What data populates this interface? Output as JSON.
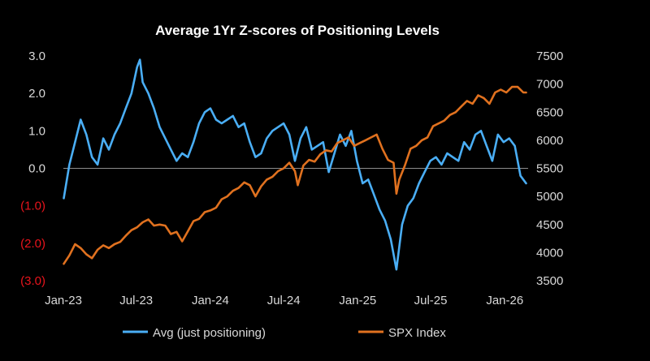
{
  "chart_data": {
    "type": "line",
    "title": "Average 1Yr Z-scores of Positioning Levels",
    "x_ticks": [
      "Jan-23",
      "Jul-23",
      "Jan-24",
      "Jul-24",
      "Jan-25",
      "Jul-25",
      "Jan-26"
    ],
    "x_range": [
      "2023-01-01",
      "2026-02-28"
    ],
    "y_left": {
      "ticks": [
        "3.0",
        "2.0",
        "1.0",
        "0.0",
        "(1.0)",
        "(2.0)",
        "(3.0)"
      ],
      "range": [
        -3,
        3
      ],
      "negative_color": "#e8141c"
    },
    "y_right": {
      "ticks": [
        "7500",
        "7000",
        "6500",
        "6000",
        "5500",
        "5000",
        "4500",
        "4000",
        "3500"
      ],
      "range": [
        3500,
        7500
      ]
    },
    "zero_line": true,
    "grid": false,
    "legend_position": "bottom",
    "series": [
      {
        "name": "Avg (just positioning)",
        "axis": "left",
        "color": "#4aaef5",
        "x": [
          "2023-01-02",
          "2023-01-16",
          "2023-01-30",
          "2023-02-13",
          "2023-02-27",
          "2023-03-13",
          "2023-03-27",
          "2023-04-10",
          "2023-04-24",
          "2023-05-08",
          "2023-05-22",
          "2023-06-05",
          "2023-06-19",
          "2023-07-03",
          "2023-07-10",
          "2023-07-17",
          "2023-07-31",
          "2023-08-14",
          "2023-08-28",
          "2023-09-11",
          "2023-09-25",
          "2023-10-09",
          "2023-10-23",
          "2023-11-06",
          "2023-11-20",
          "2023-12-04",
          "2023-12-18",
          "2024-01-01",
          "2024-01-15",
          "2024-01-29",
          "2024-02-12",
          "2024-02-26",
          "2024-03-11",
          "2024-03-25",
          "2024-04-08",
          "2024-04-22",
          "2024-05-06",
          "2024-05-20",
          "2024-06-03",
          "2024-06-17",
          "2024-07-01",
          "2024-07-15",
          "2024-07-29",
          "2024-08-12",
          "2024-08-26",
          "2024-09-09",
          "2024-09-23",
          "2024-10-07",
          "2024-10-21",
          "2024-11-04",
          "2024-11-18",
          "2024-12-02",
          "2024-12-16",
          "2024-12-30",
          "2025-01-13",
          "2025-01-27",
          "2025-02-10",
          "2025-02-24",
          "2025-03-10",
          "2025-03-24",
          "2025-04-07",
          "2025-04-14",
          "2025-04-21",
          "2025-05-05",
          "2025-05-19",
          "2025-06-02",
          "2025-06-16",
          "2025-06-30",
          "2025-07-14",
          "2025-07-28",
          "2025-08-11",
          "2025-08-25",
          "2025-09-08",
          "2025-09-22",
          "2025-10-06",
          "2025-10-20",
          "2025-11-03",
          "2025-11-17",
          "2025-12-01",
          "2025-12-15",
          "2025-12-29",
          "2026-01-12",
          "2026-01-26",
          "2026-02-09",
          "2026-02-23"
        ],
        "values": [
          -0.8,
          0.1,
          0.7,
          1.3,
          0.9,
          0.3,
          0.1,
          0.8,
          0.5,
          0.9,
          1.2,
          1.6,
          2.0,
          2.7,
          2.9,
          2.3,
          2.0,
          1.6,
          1.1,
          0.8,
          0.5,
          0.2,
          0.4,
          0.3,
          0.7,
          1.2,
          1.5,
          1.6,
          1.3,
          1.2,
          1.3,
          1.4,
          1.1,
          1.2,
          0.7,
          0.3,
          0.4,
          0.8,
          1.0,
          1.1,
          1.2,
          0.9,
          0.2,
          0.8,
          1.1,
          0.5,
          0.6,
          0.7,
          -0.1,
          0.4,
          0.9,
          0.6,
          1.0,
          0.2,
          -0.4,
          -0.3,
          -0.7,
          -1.1,
          -1.4,
          -1.9,
          -2.7,
          -2.1,
          -1.5,
          -1.0,
          -0.8,
          -0.4,
          -0.1,
          0.2,
          0.3,
          0.1,
          0.4,
          0.3,
          0.2,
          0.7,
          0.5,
          0.9,
          1.0,
          0.6,
          0.2,
          0.9,
          0.7,
          0.8,
          0.6,
          -0.2,
          -0.4
        ]
      },
      {
        "name": "SPX Index",
        "axis": "right",
        "color": "#e0711f",
        "x": [
          "2023-01-02",
          "2023-01-16",
          "2023-01-30",
          "2023-02-13",
          "2023-02-27",
          "2023-03-13",
          "2023-03-27",
          "2023-04-10",
          "2023-04-24",
          "2023-05-08",
          "2023-05-22",
          "2023-06-05",
          "2023-06-19",
          "2023-07-03",
          "2023-07-17",
          "2023-07-31",
          "2023-08-14",
          "2023-08-28",
          "2023-09-11",
          "2023-09-25",
          "2023-10-09",
          "2023-10-23",
          "2023-11-06",
          "2023-11-20",
          "2023-12-04",
          "2023-12-18",
          "2024-01-01",
          "2024-01-15",
          "2024-01-29",
          "2024-02-12",
          "2024-02-26",
          "2024-03-11",
          "2024-03-25",
          "2024-04-08",
          "2024-04-22",
          "2024-05-06",
          "2024-05-20",
          "2024-06-03",
          "2024-06-17",
          "2024-07-01",
          "2024-07-15",
          "2024-07-29",
          "2024-08-05",
          "2024-08-19",
          "2024-09-02",
          "2024-09-16",
          "2024-09-30",
          "2024-10-14",
          "2024-10-28",
          "2024-11-11",
          "2024-11-25",
          "2024-12-09",
          "2024-12-23",
          "2025-01-06",
          "2025-01-20",
          "2025-02-03",
          "2025-02-17",
          "2025-03-03",
          "2025-03-17",
          "2025-03-31",
          "2025-04-07",
          "2025-04-14",
          "2025-04-28",
          "2025-05-12",
          "2025-05-26",
          "2025-06-09",
          "2025-06-23",
          "2025-07-07",
          "2025-07-21",
          "2025-08-04",
          "2025-08-18",
          "2025-09-01",
          "2025-09-15",
          "2025-09-29",
          "2025-10-13",
          "2025-10-27",
          "2025-11-10",
          "2025-11-24",
          "2025-12-08",
          "2025-12-22",
          "2026-01-05",
          "2026-01-19",
          "2026-02-02",
          "2026-02-16",
          "2026-02-23"
        ],
        "values": [
          3800,
          3950,
          4150,
          4080,
          3970,
          3900,
          4050,
          4130,
          4080,
          4150,
          4190,
          4300,
          4400,
          4450,
          4540,
          4590,
          4480,
          4500,
          4480,
          4330,
          4370,
          4200,
          4380,
          4560,
          4600,
          4720,
          4750,
          4800,
          4950,
          5000,
          5100,
          5150,
          5250,
          5200,
          5000,
          5180,
          5300,
          5350,
          5450,
          5500,
          5600,
          5450,
          5200,
          5550,
          5650,
          5620,
          5750,
          5820,
          5800,
          5950,
          6000,
          6050,
          5900,
          5950,
          6000,
          6050,
          6100,
          5850,
          5650,
          5600,
          5050,
          5300,
          5550,
          5850,
          5900,
          6000,
          6050,
          6250,
          6300,
          6350,
          6450,
          6500,
          6600,
          6700,
          6650,
          6800,
          6750,
          6650,
          6850,
          6900,
          6850,
          6950,
          6950,
          6850,
          6850
        ]
      }
    ]
  }
}
